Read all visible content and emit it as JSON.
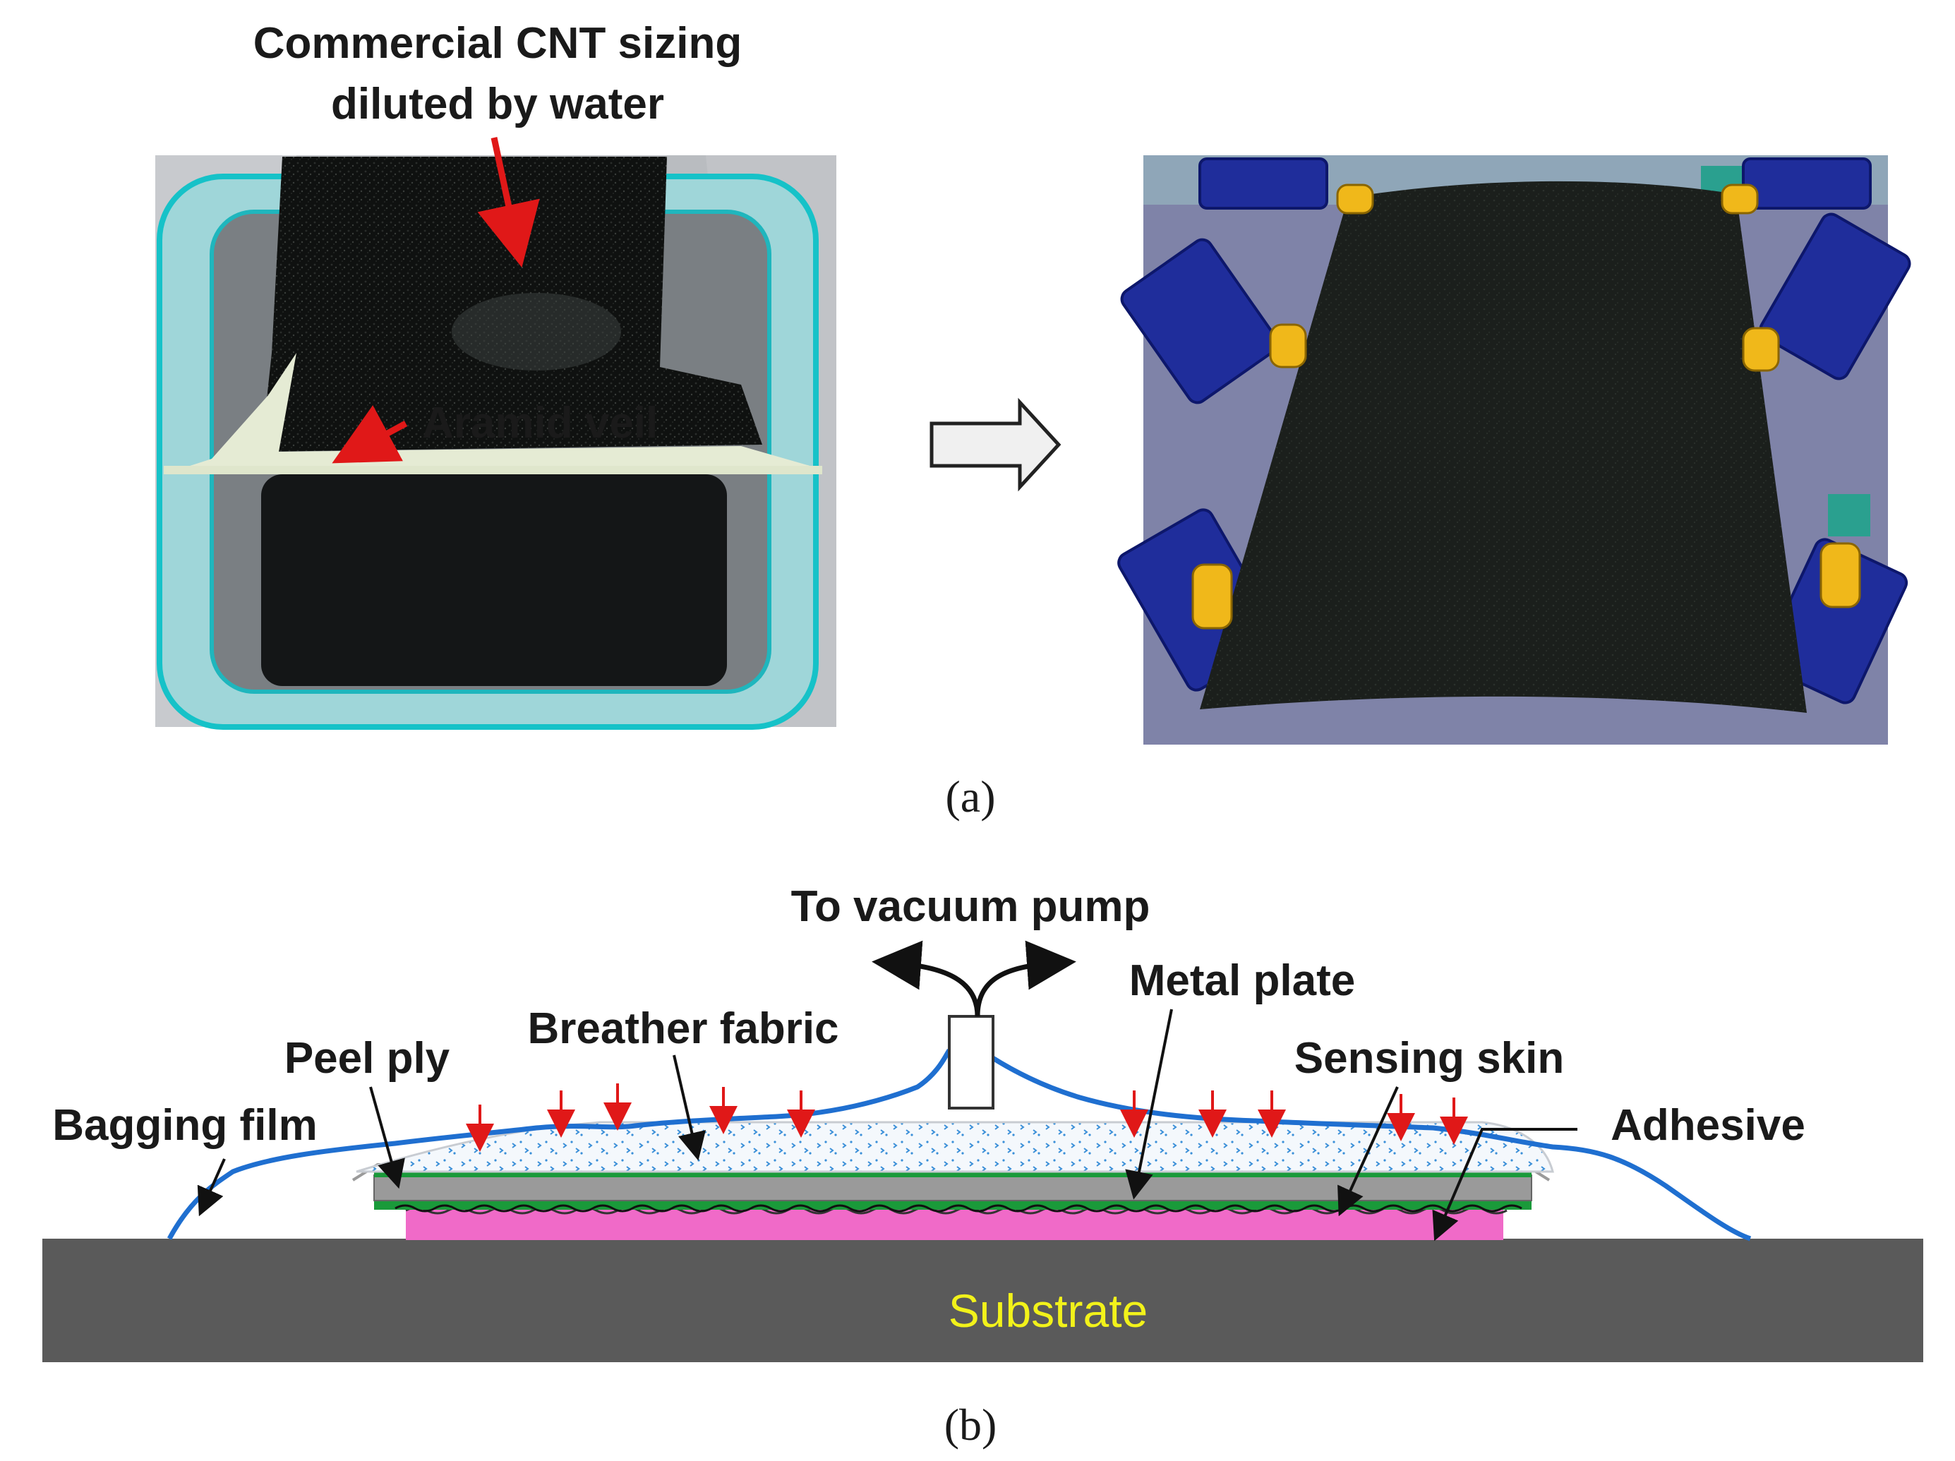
{
  "panel_a": {
    "label_cnt_line1": "Commercial CNT sizing",
    "label_cnt_line2": "diluted by water",
    "label_aramid": "Aramid veil",
    "caption": "(a)"
  },
  "panel_b": {
    "label_vacuum": "To vacuum pump",
    "label_metal_plate": "Metal plate",
    "label_breather": "Breather fabric",
    "label_peel_ply": "Peel ply",
    "label_sensing_skin": "Sensing skin",
    "label_bagging_film": "Bagging film",
    "label_adhesive": "Adhesive",
    "label_substrate": "Substrate",
    "caption": "(b)"
  },
  "colors": {
    "annotation_arrow": "#e01818",
    "bagging_film": "#1f6fd0",
    "adhesive": "#f06ac8",
    "sensing_skin": "#1a9a3a",
    "metal_plate": "#9a9a9a",
    "substrate": "#5a5a5a",
    "substrate_text": "#f2f21a",
    "breather_dots": "#3a8fd8"
  }
}
